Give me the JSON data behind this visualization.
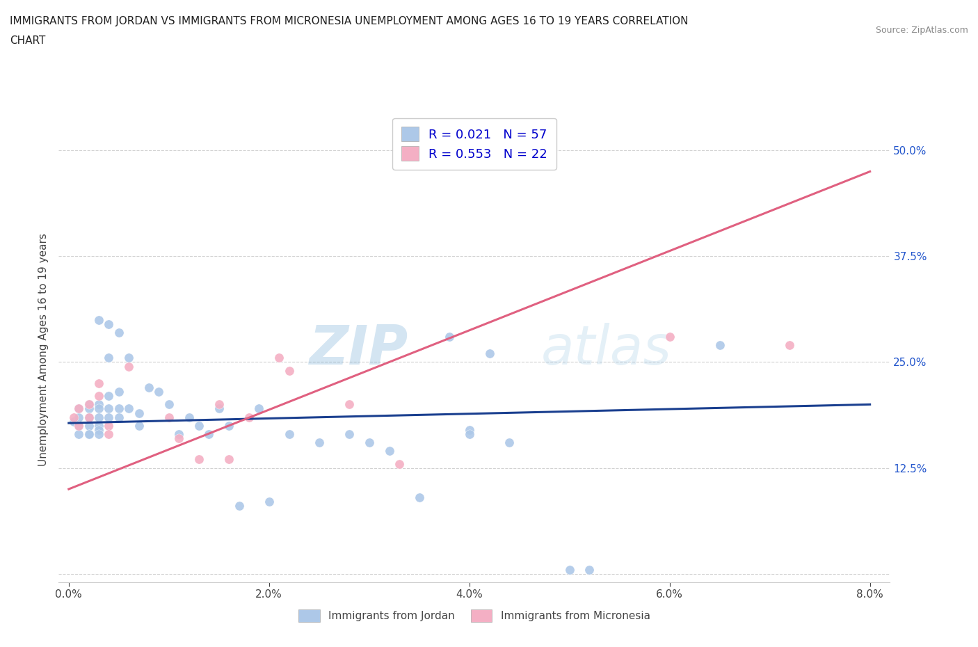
{
  "title_line1": "IMMIGRANTS FROM JORDAN VS IMMIGRANTS FROM MICRONESIA UNEMPLOYMENT AMONG AGES 16 TO 19 YEARS CORRELATION",
  "title_line2": "CHART",
  "source": "Source: ZipAtlas.com",
  "ylabel": "Unemployment Among Ages 16 to 19 years",
  "xlim": [
    -0.001,
    0.082
  ],
  "ylim": [
    -0.01,
    0.54
  ],
  "xticks": [
    0.0,
    0.02,
    0.04,
    0.06,
    0.08
  ],
  "xticklabels": [
    "0.0%",
    "2.0%",
    "4.0%",
    "6.0%",
    "8.0%"
  ],
  "yticks": [
    0.0,
    0.125,
    0.25,
    0.375,
    0.5
  ],
  "yticklabels": [
    "",
    "12.5%",
    "25.0%",
    "37.5%",
    "50.0%"
  ],
  "grid_color": "#cccccc",
  "background_color": "#ffffff",
  "jordan_color": "#adc8e8",
  "micronesia_color": "#f4afc4",
  "jordan_line_color": "#1a3f8f",
  "micronesia_line_color": "#e06080",
  "watermark_zip": "ZIP",
  "watermark_atlas": "atlas",
  "R_jordan": 0.021,
  "N_jordan": 57,
  "R_micronesia": 0.553,
  "N_micronesia": 22,
  "jordan_trend_x": [
    0.0,
    0.08
  ],
  "jordan_trend_y": [
    0.178,
    0.2
  ],
  "micronesia_trend_x": [
    0.0,
    0.08
  ],
  "micronesia_trend_y": [
    0.1,
    0.475
  ],
  "jordan_x": [
    0.0005,
    0.001,
    0.001,
    0.001,
    0.001,
    0.002,
    0.002,
    0.002,
    0.002,
    0.002,
    0.002,
    0.003,
    0.003,
    0.003,
    0.003,
    0.003,
    0.003,
    0.003,
    0.004,
    0.004,
    0.004,
    0.004,
    0.004,
    0.005,
    0.005,
    0.005,
    0.005,
    0.006,
    0.006,
    0.007,
    0.007,
    0.008,
    0.009,
    0.01,
    0.011,
    0.012,
    0.013,
    0.014,
    0.015,
    0.016,
    0.017,
    0.019,
    0.02,
    0.022,
    0.025,
    0.028,
    0.03,
    0.032,
    0.035,
    0.038,
    0.04,
    0.042,
    0.044,
    0.05,
    0.052,
    0.065,
    0.04
  ],
  "jordan_y": [
    0.18,
    0.195,
    0.185,
    0.175,
    0.165,
    0.2,
    0.195,
    0.185,
    0.175,
    0.165,
    0.165,
    0.3,
    0.2,
    0.195,
    0.185,
    0.175,
    0.17,
    0.165,
    0.295,
    0.255,
    0.21,
    0.195,
    0.185,
    0.285,
    0.215,
    0.195,
    0.185,
    0.255,
    0.195,
    0.19,
    0.175,
    0.22,
    0.215,
    0.2,
    0.165,
    0.185,
    0.175,
    0.165,
    0.195,
    0.175,
    0.08,
    0.195,
    0.085,
    0.165,
    0.155,
    0.165,
    0.155,
    0.145,
    0.09,
    0.28,
    0.17,
    0.26,
    0.155,
    0.005,
    0.005,
    0.27,
    0.165
  ],
  "micronesia_x": [
    0.0005,
    0.001,
    0.001,
    0.002,
    0.002,
    0.003,
    0.003,
    0.004,
    0.004,
    0.006,
    0.01,
    0.011,
    0.013,
    0.015,
    0.016,
    0.018,
    0.021,
    0.022,
    0.028,
    0.033,
    0.06,
    0.072
  ],
  "micronesia_y": [
    0.185,
    0.195,
    0.175,
    0.2,
    0.185,
    0.225,
    0.21,
    0.175,
    0.165,
    0.245,
    0.185,
    0.16,
    0.135,
    0.2,
    0.135,
    0.185,
    0.255,
    0.24,
    0.2,
    0.13,
    0.28,
    0.27
  ]
}
